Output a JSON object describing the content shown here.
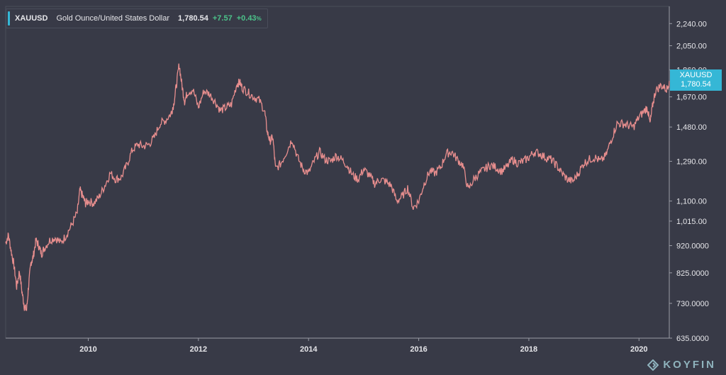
{
  "legend": {
    "symbol": "XAUUSD",
    "name": "Gold Ounce/United States Dollar",
    "price": "1,780.54",
    "change": "+7.57",
    "change_pct": "+0.43",
    "pct_sign": "%"
  },
  "price_tag": {
    "symbol": "XAUUSD",
    "price": "1,780.54"
  },
  "logo": {
    "text": "KOYFIN",
    "icon": "koyfin-logo-icon"
  },
  "colors": {
    "background": "#383a47",
    "line": "#e88e8e",
    "accent": "#35b7d6",
    "positive": "#4cc38a"
  },
  "chart_data": {
    "type": "line",
    "scale": "log",
    "ylim": [
      635,
      2400
    ],
    "xlim": [
      2008.5,
      2020.55
    ],
    "y_ticks": [
      "2,240.00",
      "2,050.00",
      "1,860.00",
      "1,670.00",
      "1,480.00",
      "1,290.00",
      "1,100.00",
      "1,015.00",
      "920.0000",
      "825.0000",
      "730.0000",
      "635.0000"
    ],
    "y_tick_values": [
      2240,
      2050,
      1860,
      1670,
      1480,
      1290,
      1100,
      1015,
      920,
      825,
      730,
      635
    ],
    "x_ticks": [
      "2010",
      "2012",
      "2014",
      "2016",
      "2018",
      "2020"
    ],
    "x_tick_values": [
      2010,
      2012,
      2014,
      2016,
      2018,
      2020
    ],
    "grid": false,
    "series": [
      {
        "x": [
          2008.5,
          2008.55,
          2008.6,
          2008.65,
          2008.7,
          2008.75,
          2008.8,
          2008.84,
          2008.88,
          2008.92,
          2008.96,
          2009.0,
          2009.05,
          2009.1,
          2009.15,
          2009.2,
          2009.3,
          2009.4,
          2009.5,
          2009.6,
          2009.7,
          2009.8,
          2009.85,
          2009.9,
          2009.95,
          2010.0,
          2010.1,
          2010.2,
          2010.3,
          2010.4,
          2010.5,
          2010.6,
          2010.7,
          2010.8,
          2010.9,
          2011.0,
          2011.1,
          2011.2,
          2011.3,
          2011.4,
          2011.5,
          2011.55,
          2011.6,
          2011.65,
          2011.7,
          2011.75,
          2011.8,
          2011.9,
          2012.0,
          2012.1,
          2012.2,
          2012.3,
          2012.4,
          2012.5,
          2012.6,
          2012.7,
          2012.75,
          2012.8,
          2012.9,
          2013.0,
          2013.1,
          2013.2,
          2013.25,
          2013.3,
          2013.35,
          2013.4,
          2013.5,
          2013.6,
          2013.7,
          2013.8,
          2013.9,
          2014.0,
          2014.1,
          2014.2,
          2014.3,
          2014.4,
          2014.5,
          2014.6,
          2014.7,
          2014.8,
          2014.9,
          2015.0,
          2015.1,
          2015.2,
          2015.3,
          2015.4,
          2015.5,
          2015.6,
          2015.7,
          2015.8,
          2015.9,
          2016.0,
          2016.1,
          2016.2,
          2016.3,
          2016.4,
          2016.5,
          2016.6,
          2016.7,
          2016.8,
          2016.9,
          2017.0,
          2017.1,
          2017.2,
          2017.3,
          2017.4,
          2017.5,
          2017.6,
          2017.7,
          2017.8,
          2017.9,
          2018.0,
          2018.1,
          2018.2,
          2018.3,
          2018.4,
          2018.5,
          2018.6,
          2018.7,
          2018.8,
          2018.9,
          2019.0,
          2019.1,
          2019.2,
          2019.3,
          2019.4,
          2019.5,
          2019.6,
          2019.7,
          2019.8,
          2019.9,
          2020.0,
          2020.1,
          2020.15,
          2020.2,
          2020.25,
          2020.3,
          2020.4,
          2020.5,
          2020.55
        ],
        "y": [
          930,
          960,
          900,
          850,
          780,
          830,
          760,
          720,
          710,
          790,
          860,
          880,
          940,
          920,
          890,
          910,
          940,
          950,
          930,
          960,
          1000,
          1050,
          1150,
          1120,
          1090,
          1100,
          1090,
          1120,
          1170,
          1230,
          1200,
          1210,
          1270,
          1350,
          1380,
          1370,
          1380,
          1420,
          1500,
          1520,
          1560,
          1620,
          1750,
          1900,
          1750,
          1640,
          1700,
          1720,
          1600,
          1710,
          1690,
          1640,
          1580,
          1600,
          1620,
          1760,
          1770,
          1730,
          1700,
          1670,
          1650,
          1580,
          1450,
          1400,
          1420,
          1250,
          1280,
          1340,
          1410,
          1310,
          1250,
          1230,
          1290,
          1340,
          1300,
          1290,
          1320,
          1300,
          1270,
          1220,
          1200,
          1250,
          1220,
          1180,
          1200,
          1190,
          1170,
          1100,
          1120,
          1160,
          1070,
          1100,
          1180,
          1240,
          1230,
          1260,
          1330,
          1340,
          1300,
          1270,
          1150,
          1200,
          1230,
          1250,
          1270,
          1260,
          1240,
          1260,
          1300,
          1280,
          1290,
          1310,
          1340,
          1330,
          1310,
          1300,
          1270,
          1230,
          1200,
          1190,
          1230,
          1280,
          1300,
          1310,
          1290,
          1320,
          1410,
          1500,
          1500,
          1490,
          1480,
          1540,
          1580,
          1600,
          1500,
          1620,
          1710,
          1750,
          1720,
          1780
        ]
      }
    ]
  }
}
